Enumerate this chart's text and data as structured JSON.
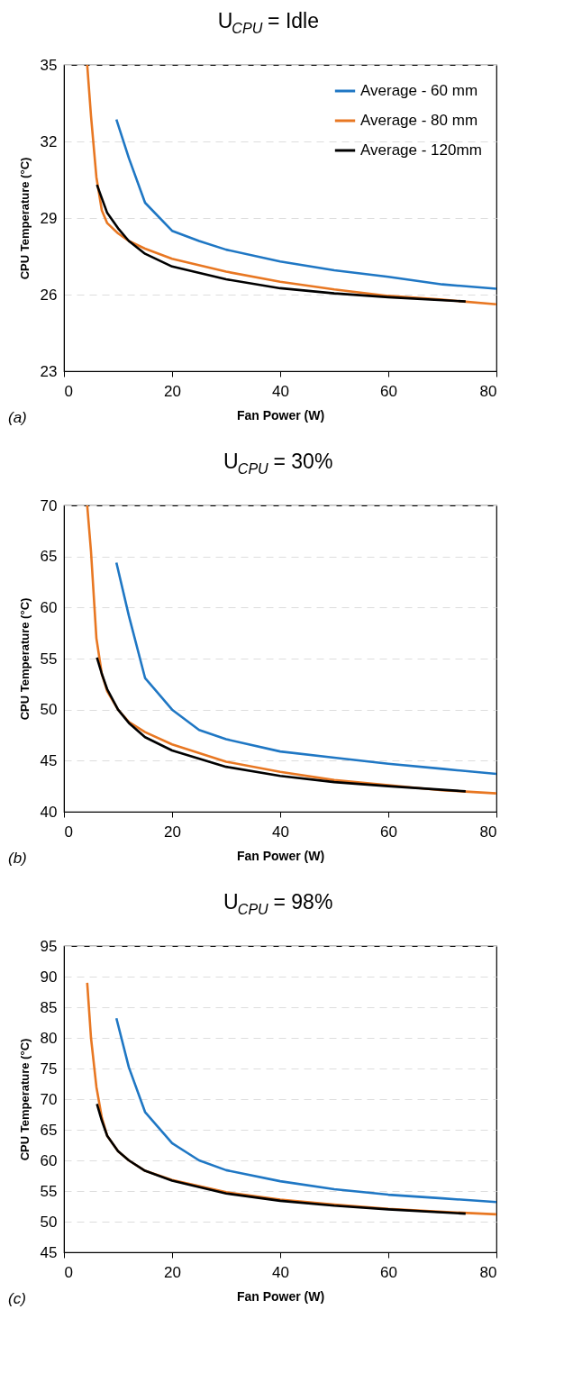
{
  "chart_data": [
    {
      "type": "line",
      "title": "U$_{CPU}$ = Idle",
      "xlabel": "Fan Power (W)",
      "ylabel": "CPU Temperature (°C)",
      "annotations": [
        "(a)"
      ],
      "xlim": [
        0,
        80
      ],
      "xticks": [
        0,
        20,
        40,
        60,
        80
      ],
      "ylim": [
        23,
        35
      ],
      "yticks": [
        23,
        26,
        29,
        32,
        35
      ],
      "grid": "y",
      "legend": "top right",
      "line_style": "solid",
      "marker": "none",
      "series": [
        {
          "name": "Average - 60 mm",
          "color": "#1f77c4",
          "x": [
            9.7,
            12,
            15,
            20,
            25,
            30,
            40,
            50,
            60,
            70,
            80
          ],
          "values": [
            32.86,
            31.35,
            29.6,
            28.5,
            28.1,
            27.76,
            27.3,
            26.95,
            26.7,
            26.4,
            26.23
          ]
        },
        {
          "name": "Average - 80 mm",
          "color": "#e87722",
          "x": [
            4.3,
            5,
            6,
            7,
            8,
            10,
            12,
            15,
            20,
            30,
            40,
            50,
            60,
            70,
            80
          ],
          "values": [
            35,
            33.0,
            30.6,
            29.3,
            28.8,
            28.4,
            28.1,
            27.8,
            27.4,
            26.9,
            26.5,
            26.2,
            25.95,
            25.8,
            25.62
          ]
        },
        {
          "name": "Average - 120mm",
          "color": "#000000",
          "x": [
            6.1,
            8,
            10,
            12,
            15,
            20,
            30,
            40,
            50,
            60,
            74.3
          ],
          "values": [
            30.3,
            29.2,
            28.6,
            28.1,
            27.6,
            27.1,
            26.6,
            26.25,
            26.05,
            25.9,
            25.73
          ]
        }
      ]
    },
    {
      "type": "line",
      "title": "U$_{CPU}$ = 30%",
      "xlabel": "Fan Power (W)",
      "ylabel": "CPU Temperature (°C)",
      "annotations": [
        "(b)"
      ],
      "xlim": [
        0,
        80
      ],
      "xticks": [
        0,
        20,
        40,
        60,
        80
      ],
      "ylim": [
        40,
        70
      ],
      "yticks": [
        40,
        45,
        50,
        55,
        60,
        65,
        70
      ],
      "grid": "y",
      "legend": "top right",
      "line_style": "solid",
      "marker": "none",
      "series": [
        {
          "name": "Average - 60 mm",
          "color": "#1f77c4",
          "x": [
            9.7,
            12,
            15,
            20,
            25,
            30,
            40,
            50,
            60,
            70,
            80
          ],
          "values": [
            64.4,
            59.2,
            53.1,
            50.0,
            48.0,
            47.1,
            45.9,
            45.3,
            44.7,
            44.2,
            43.7
          ]
        },
        {
          "name": "Average - 80 mm",
          "color": "#e87722",
          "x": [
            4.3,
            5,
            6,
            7,
            8,
            10,
            12,
            15,
            20,
            30,
            40,
            50,
            60,
            70,
            80
          ],
          "values": [
            70,
            65.5,
            57,
            53.5,
            51.8,
            50.0,
            48.8,
            47.8,
            46.6,
            44.9,
            43.9,
            43.1,
            42.6,
            42.1,
            41.8
          ]
        },
        {
          "name": "Average - 120mm",
          "color": "#000000",
          "x": [
            6.1,
            7,
            8,
            10,
            12,
            15,
            20,
            30,
            40,
            50,
            60,
            74.3
          ],
          "values": [
            55.1,
            53.5,
            52.0,
            50.0,
            48.7,
            47.3,
            46.0,
            44.4,
            43.5,
            42.9,
            42.5,
            42.0
          ]
        }
      ]
    },
    {
      "type": "line",
      "title": "U$_{CPU}$ = 98%",
      "xlabel": "Fan Power (W)",
      "ylabel": "CPU Temperature (°C)",
      "annotations": [
        "(c)"
      ],
      "xlim": [
        0,
        80
      ],
      "xticks": [
        0,
        20,
        40,
        60,
        80
      ],
      "ylim": [
        45,
        95
      ],
      "yticks": [
        45,
        50,
        55,
        60,
        65,
        70,
        75,
        80,
        85,
        90,
        95
      ],
      "grid": "y",
      "legend": "top right",
      "line_style": "solid",
      "marker": "none",
      "series": [
        {
          "name": "Average - 60 mm",
          "color": "#1f77c4",
          "x": [
            9.7,
            12,
            15,
            20,
            25,
            30,
            40,
            50,
            60,
            70,
            80
          ],
          "values": [
            83.2,
            75.2,
            67.9,
            62.8,
            60.0,
            58.4,
            56.6,
            55.3,
            54.4,
            53.8,
            53.2
          ]
        },
        {
          "name": "Average - 80 mm",
          "color": "#e87722",
          "x": [
            4.3,
            5,
            6,
            7,
            8,
            10,
            12,
            15,
            20,
            30,
            40,
            50,
            60,
            70,
            80
          ],
          "values": [
            89,
            80,
            72,
            67,
            64,
            61.5,
            60,
            58.3,
            56.8,
            54.8,
            53.6,
            52.8,
            52.1,
            51.6,
            51.2
          ]
        },
        {
          "name": "Average - 120mm",
          "color": "#000000",
          "x": [
            6.1,
            7,
            8,
            10,
            12,
            15,
            20,
            30,
            40,
            50,
            60,
            74.3
          ],
          "values": [
            69.2,
            66.5,
            64,
            61.5,
            60,
            58.3,
            56.7,
            54.6,
            53.4,
            52.6,
            52.0,
            51.3
          ]
        }
      ]
    }
  ]
}
